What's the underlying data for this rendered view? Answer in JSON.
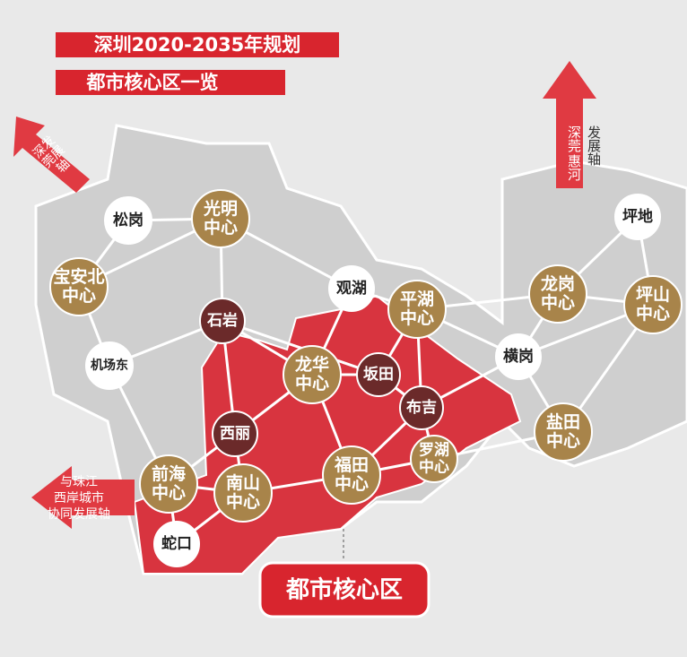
{
  "header": {
    "lines": [
      "深圳2020-2035年规划",
      "都市核心区一览"
    ]
  },
  "nodes": [
    {
      "label": [
        "松岗"
      ]
    },
    {
      "label": [
        "光明",
        "中心"
      ]
    },
    {
      "label": [
        "宝安北",
        "中心"
      ]
    },
    {
      "label": [
        "石岩"
      ]
    },
    {
      "label": [
        "观湖"
      ]
    },
    {
      "label": [
        "平湖",
        "中心"
      ]
    },
    {
      "label": [
        "机场东"
      ]
    },
    {
      "label": [
        "龙华",
        "中心"
      ]
    },
    {
      "label": [
        "坂田"
      ]
    },
    {
      "label": [
        "布吉"
      ]
    },
    {
      "label": [
        "横岗"
      ]
    },
    {
      "label": [
        "坪地"
      ]
    },
    {
      "label": [
        "龙岗",
        "中心"
      ]
    },
    {
      "label": [
        "坪山",
        "中心"
      ]
    },
    {
      "label": [
        "西丽"
      ]
    },
    {
      "label": [
        "前海",
        "中心"
      ]
    },
    {
      "label": [
        "南山",
        "中心"
      ]
    },
    {
      "label": [
        "福田",
        "中心"
      ]
    },
    {
      "label": [
        "罗湖",
        "中心"
      ]
    },
    {
      "label": [
        "盐田",
        "中心"
      ]
    },
    {
      "label": [
        "蛇口"
      ]
    }
  ],
  "arrows": [
    {
      "label": [
        "深发",
        "莞展",
        "轴"
      ]
    },
    {
      "label": [
        "深莞",
        "惠河",
        "发展轴"
      ]
    },
    {
      "label": [
        "与珠江",
        "西岸城市",
        "协同发展轴"
      ]
    }
  ],
  "core_label": "都市核心区"
}
